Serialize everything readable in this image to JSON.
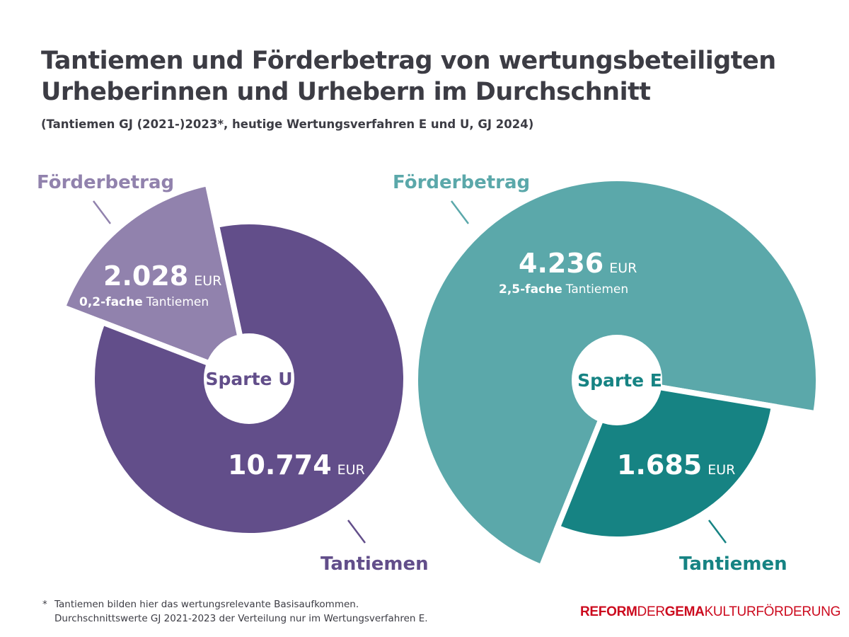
{
  "title_line1": "Tantiemen und Förderbetrag von wertungsbeteiligten",
  "title_line2": "Urheberinnen und Urhebern im Durchschnitt",
  "subtitle": "(Tantiemen GJ (2021-)2023*, heutige Wertungsverfahren E und U, GJ 2024)",
  "chart_data": [
    {
      "type": "pie",
      "center_label": "Sparte U",
      "unit": "EUR",
      "slices": [
        {
          "name": "Förderbetrag",
          "value": 2028,
          "value_label": "2.028",
          "multiple_bold": "0,2-fache",
          "multiple_text": "Tantiemen",
          "color": "#9182AD"
        },
        {
          "name": "Tantiemen",
          "value": 10774,
          "value_label": "10.774",
          "color": "#624E8A"
        }
      ]
    },
    {
      "type": "pie",
      "center_label": "Sparte E",
      "unit": "EUR",
      "slices": [
        {
          "name": "Förderbetrag",
          "value": 4236,
          "value_label": "4.236",
          "multiple_bold": "2,5-fache",
          "multiple_text": "Tantiemen",
          "color": "#5BA8AA"
        },
        {
          "name": "Tantiemen",
          "value": 1685,
          "value_label": "1.685",
          "color": "#168383"
        }
      ]
    }
  ],
  "footnote": {
    "marker": "*",
    "line1": "Tantiemen bilden hier das wertungsrelevante Basisaufkommen.",
    "line2": "Durchschnittswerte GJ 2021-2023 der Verteilung nur im Wertungsverfahren E."
  },
  "logo": {
    "part1": "REFORM",
    "part2": "DER",
    "part3": "GEMA",
    "part4": "KULTURFÖRDERUNG",
    "color": "#cc0a1e"
  }
}
